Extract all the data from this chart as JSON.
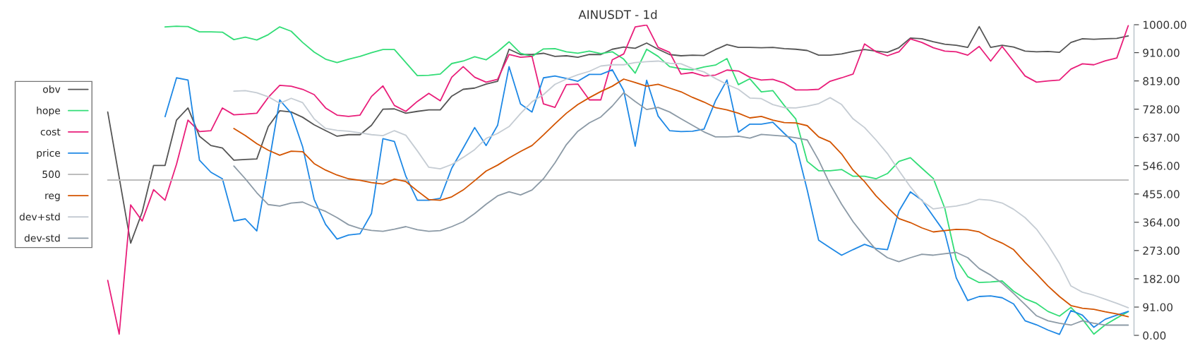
{
  "chart_data": {
    "type": "line",
    "title": "AINUSDT - 1d",
    "categories": [
      null,
      null,
      null,
      null,
      null,
      null,
      null,
      null,
      null,
      null,
      null,
      null,
      null,
      null,
      null,
      null,
      null,
      null,
      null,
      null,
      null,
      null,
      null,
      null,
      null,
      null,
      null,
      null,
      null,
      null,
      null,
      null,
      null,
      null,
      null,
      null,
      null,
      null,
      null,
      null,
      null,
      null,
      null,
      null,
      null,
      null,
      null,
      null,
      null,
      null,
      null,
      null,
      null,
      null,
      null,
      null,
      null,
      null,
      null,
      null,
      null,
      null,
      null,
      null,
      null,
      null,
      null,
      null,
      null,
      null,
      null,
      null,
      null,
      null,
      null,
      null,
      null,
      null,
      null,
      null,
      null,
      null,
      null,
      null,
      null,
      null,
      null,
      null,
      null,
      null
    ],
    "series": [
      {
        "name": "obv",
        "color": "#555555",
        "values": [
          719,
          null,
          297,
          396,
          547,
          547,
          693,
          732,
          641,
          611,
          603,
          564,
          566,
          568,
          672,
          723,
          719,
          702,
          678,
          659,
          641,
          646,
          646,
          676,
          728,
          729,
          715,
          721,
          726,
          726,
          770,
          792,
          796,
          809,
          818,
          921,
          904,
          904,
          908,
          898,
          900,
          895,
          904,
          904,
          921,
          928,
          924,
          941,
          921,
          904,
          900,
          902,
          901,
          920,
          936,
          927,
          927,
          926,
          927,
          923,
          921,
          917,
          902,
          902,
          906,
          914,
          920,
          915,
          911,
          926,
          957,
          955,
          945,
          937,
          934,
          927,
          994,
          927,
          934,
          928,
          915,
          913,
          914,
          911,
          943,
          955,
          953,
          955,
          956,
          964
        ]
      },
      {
        "name": "hope",
        "color": "#33dd77",
        "values": [
          null,
          null,
          null,
          null,
          null,
          993,
          995,
          994,
          977,
          977,
          976,
          952,
          960,
          951,
          968,
          993,
          979,
          943,
          912,
          889,
          878,
          889,
          898,
          910,
          920,
          920,
          878,
          836,
          837,
          841,
          875,
          883,
          897,
          887,
          913,
          945,
          908,
          898,
          922,
          923,
          913,
          908,
          915,
          907,
          913,
          889,
          844,
          921,
          898,
          865,
          858,
          855,
          864,
          870,
          891,
          807,
          826,
          784,
          788,
          740,
          697,
          560,
          530,
          530,
          534,
          512,
          512,
          504,
          521,
          560,
          572,
          538,
          505,
          409,
          245,
          189,
          170,
          172,
          175,
          142,
          118,
          103,
          77,
          62,
          90,
          52,
          4,
          34,
          56,
          76
        ]
      },
      {
        "name": "cost",
        "color": "#e91e7a",
        "values": [
          177,
          4,
          420,
          368,
          469,
          435,
          551,
          693,
          656,
          659,
          732,
          710,
          712,
          715,
          766,
          805,
          802,
          792,
          775,
          732,
          709,
          705,
          709,
          769,
          803,
          740,
          721,
          753,
          779,
          755,
          831,
          865,
          831,
          815,
          824,
          904,
          895,
          898,
          745,
          734,
          807,
          809,
          758,
          758,
          887,
          906,
          993,
          999,
          927,
          911,
          841,
          846,
          835,
          838,
          854,
          851,
          831,
          822,
          824,
          812,
          790,
          790,
          792,
          818,
          829,
          841,
          938,
          913,
          900,
          913,
          954,
          943,
          926,
          915,
          913,
          902,
          930,
          883,
          930,
          883,
          835,
          815,
          819,
          822,
          857,
          874,
          871,
          884,
          893,
          997
        ]
      },
      {
        "name": "price",
        "color": "#1e88e5",
        "values": [
          null,
          null,
          null,
          null,
          null,
          704,
          829,
          822,
          564,
          525,
          504,
          368,
          375,
          336,
          542,
          758,
          715,
          607,
          438,
          357,
          310,
          323,
          327,
          392,
          633,
          624,
          512,
          435,
          435,
          441,
          538,
          603,
          669,
          611,
          676,
          865,
          745,
          719,
          829,
          835,
          827,
          818,
          840,
          840,
          855,
          788,
          609,
          821,
          706,
          659,
          656,
          657,
          664,
          755,
          822,
          654,
          680,
          680,
          686,
          650,
          616,
          468,
          306,
          282,
          258,
          276,
          293,
          280,
          276,
          400,
          462,
          435,
          383,
          331,
          185,
          112,
          125,
          127,
          121,
          101,
          47,
          34,
          17,
          3,
          80,
          65,
          26,
          52,
          65,
          77
        ]
      },
      {
        "name": "500",
        "color": "#bdbdbd",
        "values": [
          500,
          500,
          500,
          500,
          500,
          500,
          500,
          500,
          500,
          500,
          500,
          500,
          500,
          500,
          500,
          500,
          500,
          500,
          500,
          500,
          500,
          500,
          500,
          500,
          500,
          500,
          500,
          500,
          500,
          500,
          500,
          500,
          500,
          500,
          500,
          500,
          500,
          500,
          500,
          500,
          500,
          500,
          500,
          500,
          500,
          500,
          500,
          500,
          500,
          500,
          500,
          500,
          500,
          500,
          500,
          500,
          500,
          500,
          500,
          500,
          500,
          500,
          500,
          500,
          500,
          500,
          500,
          500,
          500,
          500,
          500,
          500,
          500,
          500,
          500,
          500,
          500,
          500,
          500,
          500,
          500,
          500,
          500,
          500,
          500,
          500,
          500,
          500,
          500,
          500
        ]
      },
      {
        "name": "reg",
        "color": "#d35400",
        "values": [
          null,
          null,
          null,
          null,
          null,
          null,
          null,
          null,
          null,
          null,
          null,
          666,
          643,
          617,
          596,
          580,
          593,
          591,
          553,
          532,
          516,
          504,
          499,
          492,
          487,
          503,
          495,
          465,
          437,
          435,
          446,
          468,
          498,
          529,
          548,
          571,
          592,
          611,
          645,
          681,
          715,
          743,
          765,
          785,
          802,
          825,
          814,
          802,
          808,
          796,
          784,
          766,
          751,
          733,
          726,
          715,
          700,
          705,
          693,
          685,
          684,
          675,
          639,
          623,
          584,
          532,
          495,
          449,
          412,
          376,
          363,
          346,
          333,
          337,
          341,
          340,
          333,
          313,
          297,
          276,
          235,
          198,
          159,
          125,
          96,
          87,
          84,
          76,
          69,
          60
        ]
      },
      {
        "name": "dev+std",
        "color": "#c5ccd3",
        "values": [
          null,
          null,
          null,
          null,
          null,
          null,
          null,
          null,
          null,
          null,
          null,
          786,
          788,
          781,
          768,
          747,
          763,
          749,
          697,
          666,
          660,
          657,
          652,
          646,
          643,
          659,
          644,
          594,
          541,
          536,
          550,
          573,
          598,
          634,
          650,
          672,
          714,
          752,
          775,
          808,
          825,
          839,
          850,
          867,
          871,
          871,
          878,
          881,
          883,
          876,
          874,
          859,
          848,
          827,
          808,
          792,
          764,
          762,
          743,
          733,
          732,
          738,
          746,
          765,
          743,
          697,
          669,
          629,
          585,
          530,
          478,
          433,
          407,
          412,
          416,
          424,
          438,
          435,
          426,
          406,
          379,
          342,
          291,
          232,
          159,
          139,
          129,
          116,
          103,
          89
        ]
      },
      {
        "name": "dev-std",
        "color": "#8c9aa6",
        "values": [
          null,
          null,
          null,
          null,
          null,
          null,
          null,
          null,
          null,
          null,
          null,
          545,
          504,
          459,
          421,
          416,
          426,
          429,
          413,
          399,
          379,
          356,
          344,
          338,
          335,
          342,
          350,
          340,
          335,
          337,
          350,
          366,
          392,
          422,
          449,
          462,
          452,
          468,
          504,
          555,
          614,
          657,
          684,
          703,
          738,
          781,
          753,
          727,
          734,
          719,
          697,
          676,
          655,
          639,
          639,
          641,
          635,
          647,
          644,
          641,
          636,
          629,
          564,
          486,
          422,
          366,
          319,
          276,
          250,
          237,
          250,
          261,
          258,
          263,
          267,
          250,
          215,
          194,
          168,
          135,
          99,
          63,
          47,
          39,
          33,
          47,
          39,
          33,
          33,
          33
        ]
      }
    ],
    "ylim": [
      0,
      1000
    ],
    "yticks": [
      {
        "value": 0,
        "label": "0.00"
      },
      {
        "value": 91,
        "label": "91.00"
      },
      {
        "value": 182,
        "label": "182.00"
      },
      {
        "value": 273,
        "label": "273.00"
      },
      {
        "value": 364,
        "label": "364.00"
      },
      {
        "value": 455,
        "label": "455.00"
      },
      {
        "value": 546,
        "label": "546.00"
      },
      {
        "value": 637,
        "label": "637.00"
      },
      {
        "value": 728,
        "label": "728.00"
      },
      {
        "value": 819,
        "label": "819.00"
      },
      {
        "value": 910,
        "label": "910.00"
      },
      {
        "value": 1000,
        "label": "1000.00"
      }
    ],
    "tick_labels": "y",
    "legend": "left",
    "grid": false,
    "marker": "none",
    "line_style": "solid"
  }
}
